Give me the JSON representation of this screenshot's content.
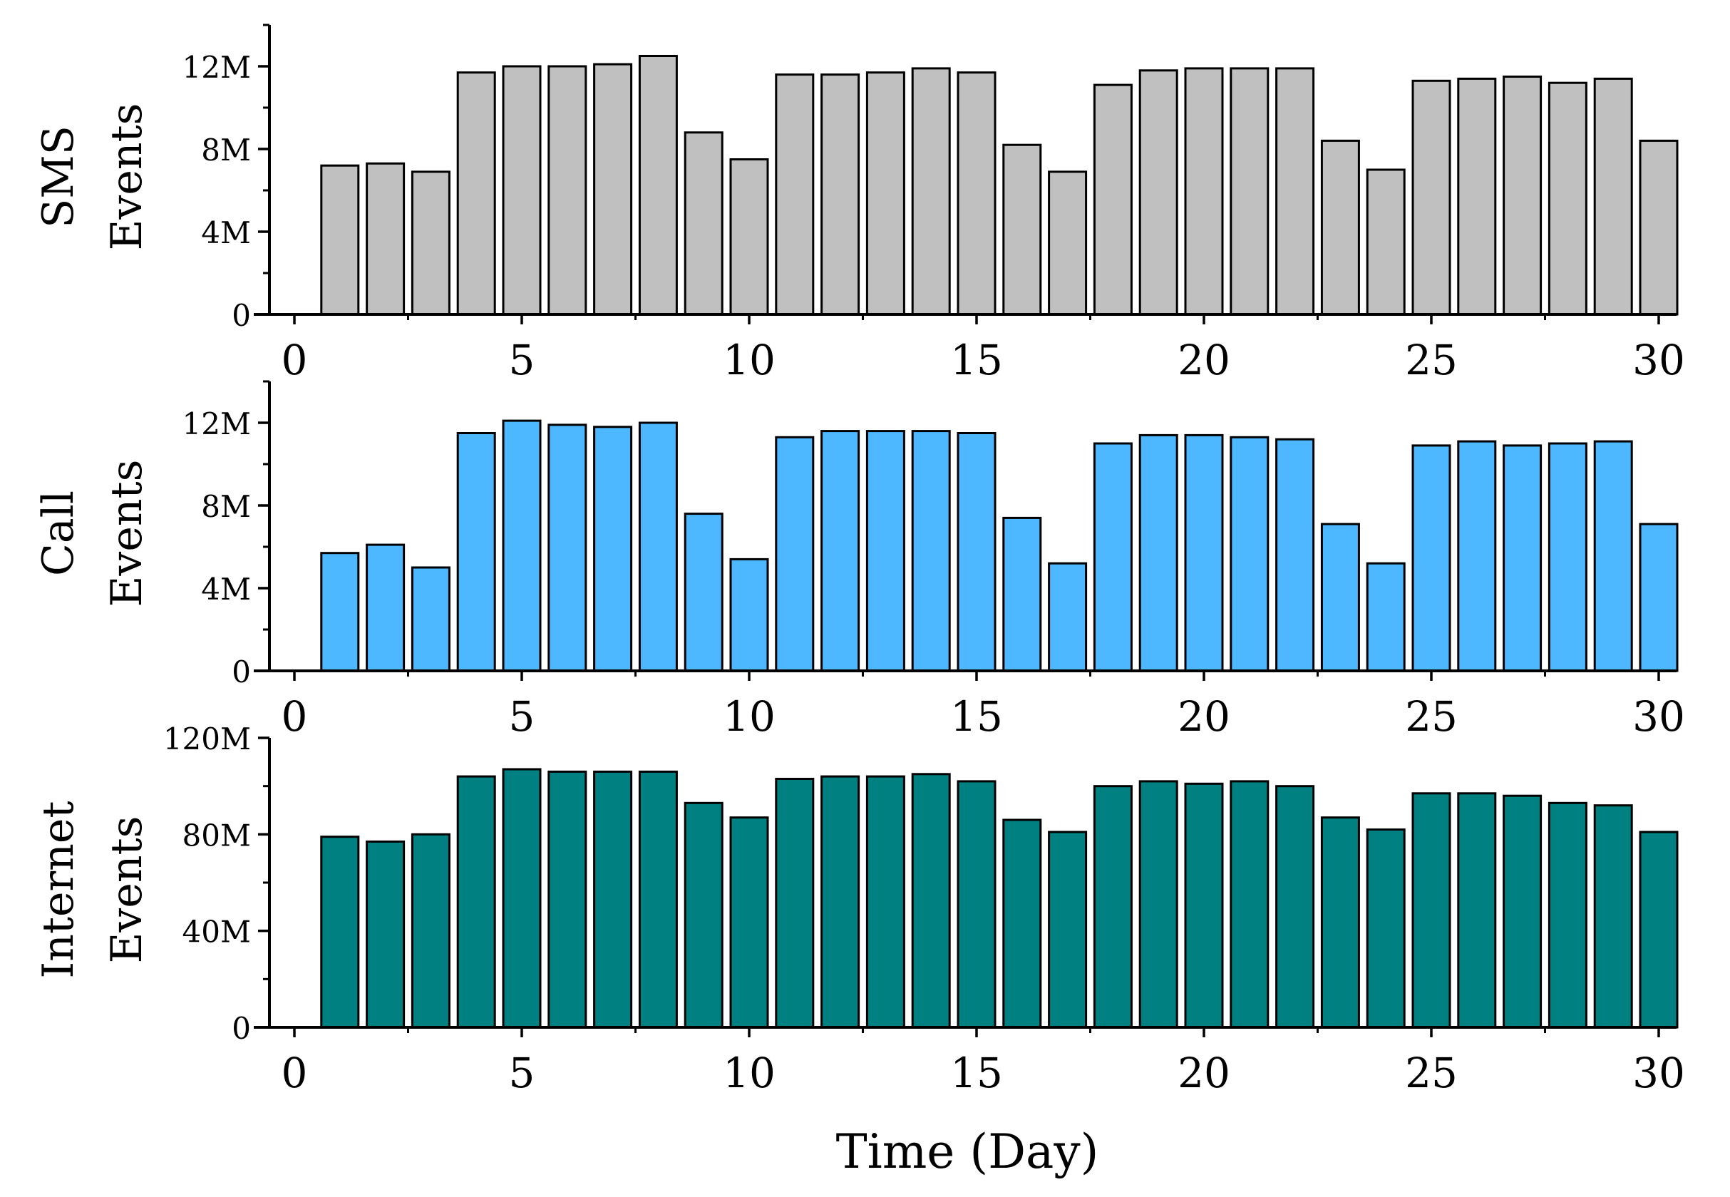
{
  "chart_data": [
    {
      "type": "bar",
      "ylabel_line1": "SMS",
      "ylabel_line2": "Events",
      "xlabel": "",
      "bar_color": "#c0c0c0",
      "x": [
        1,
        2,
        3,
        4,
        5,
        6,
        7,
        8,
        9,
        10,
        11,
        12,
        13,
        14,
        15,
        16,
        17,
        18,
        19,
        20,
        21,
        22,
        23,
        24,
        25,
        26,
        27,
        28,
        29,
        30
      ],
      "values": [
        7.2,
        7.3,
        6.9,
        11.7,
        12.0,
        12.0,
        12.1,
        12.5,
        8.8,
        7.5,
        11.6,
        11.6,
        11.7,
        11.9,
        11.7,
        8.2,
        6.9,
        11.1,
        11.8,
        11.9,
        11.9,
        11.9,
        8.4,
        7.0,
        11.3,
        11.4,
        11.5,
        11.2,
        11.4,
        8.4
      ],
      "value_unit": "M",
      "ylim": [
        0,
        14
      ],
      "yticks": [
        0,
        4,
        8,
        12
      ],
      "ytick_labels": [
        "0",
        "4M",
        "8M",
        "12M"
      ],
      "xlim": [
        -0.5,
        30.7
      ],
      "xticks": [
        0,
        5,
        10,
        15,
        20,
        25,
        30
      ],
      "xtick_labels": [
        "0",
        "5",
        "10",
        "15",
        "20",
        "25",
        "30"
      ]
    },
    {
      "type": "bar",
      "ylabel_line1": "Call",
      "ylabel_line2": "Events",
      "xlabel": "",
      "bar_color": "#4db8ff",
      "x": [
        1,
        2,
        3,
        4,
        5,
        6,
        7,
        8,
        9,
        10,
        11,
        12,
        13,
        14,
        15,
        16,
        17,
        18,
        19,
        20,
        21,
        22,
        23,
        24,
        25,
        26,
        27,
        28,
        29,
        30
      ],
      "values": [
        5.7,
        6.1,
        5.0,
        11.5,
        12.1,
        11.9,
        11.8,
        12.0,
        7.6,
        5.4,
        11.3,
        11.6,
        11.6,
        11.6,
        11.5,
        7.4,
        5.2,
        11.0,
        11.4,
        11.4,
        11.3,
        11.2,
        7.1,
        5.2,
        10.9,
        11.1,
        10.9,
        11.0,
        11.1,
        7.1
      ],
      "value_unit": "M",
      "ylim": [
        0,
        14
      ],
      "yticks": [
        0,
        4,
        8,
        12
      ],
      "ytick_labels": [
        "0",
        "4M",
        "8M",
        "12M"
      ],
      "xlim": [
        -0.5,
        30.7
      ],
      "xticks": [
        0,
        5,
        10,
        15,
        20,
        25,
        30
      ],
      "xtick_labels": [
        "0",
        "5",
        "10",
        "15",
        "20",
        "25",
        "30"
      ]
    },
    {
      "type": "bar",
      "ylabel_line1": "Internet",
      "ylabel_line2": "Events",
      "xlabel": "Time (Day)",
      "bar_color": "#008080",
      "x": [
        1,
        2,
        3,
        4,
        5,
        6,
        7,
        8,
        9,
        10,
        11,
        12,
        13,
        14,
        15,
        16,
        17,
        18,
        19,
        20,
        21,
        22,
        23,
        24,
        25,
        26,
        27,
        28,
        29,
        30
      ],
      "values": [
        79,
        77,
        80,
        104,
        107,
        106,
        106,
        106,
        93,
        87,
        103,
        104,
        104,
        105,
        102,
        86,
        81,
        100,
        102,
        101,
        102,
        100,
        87,
        82,
        97,
        97,
        96,
        93,
        92,
        81
      ],
      "value_unit": "M",
      "ylim": [
        0,
        120
      ],
      "yticks": [
        0,
        40,
        80,
        120
      ],
      "ytick_labels": [
        "0",
        "40M",
        "80M",
        "120M"
      ],
      "xlim": [
        -0.5,
        30.7
      ],
      "xticks": [
        0,
        5,
        10,
        15,
        20,
        25,
        30
      ],
      "xtick_labels": [
        "0",
        "5",
        "10",
        "15",
        "20",
        "25",
        "30"
      ]
    }
  ]
}
